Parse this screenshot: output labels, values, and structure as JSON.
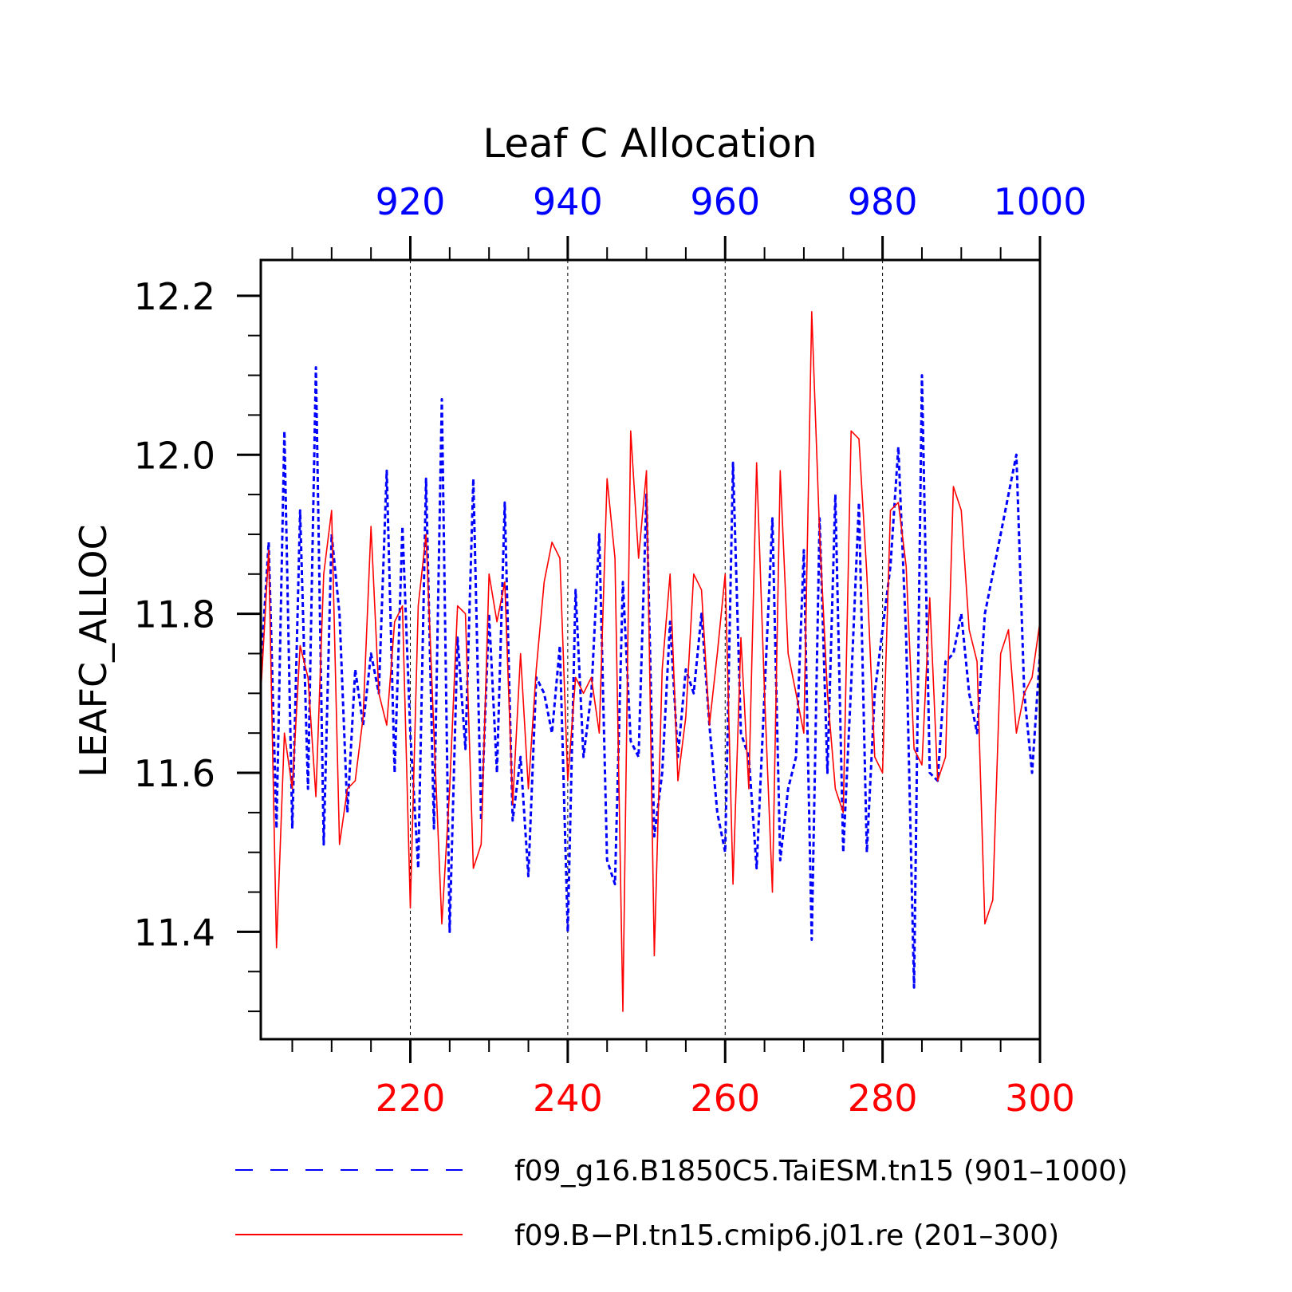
{
  "chart_data": {
    "type": "line",
    "title": "Leaf C Allocation",
    "ylabel": "LEAFC_ALLOC",
    "ylim": [
      11.265,
      12.245
    ],
    "y_ticks": [
      11.4,
      11.6,
      11.8,
      12.0,
      12.2
    ],
    "y_tick_labels": [
      "11.4",
      "11.6",
      "11.8",
      "12.0",
      "12.2"
    ],
    "x_bottom": {
      "range": [
        201,
        300
      ],
      "ticks": [
        220,
        240,
        260,
        280,
        300
      ],
      "tick_labels": [
        "220",
        "240",
        "260",
        "280",
        "300"
      ],
      "color": "#ff0000"
    },
    "x_top": {
      "range": [
        901,
        1000
      ],
      "ticks": [
        920,
        940,
        960,
        980,
        1000
      ],
      "tick_labels": [
        "920",
        "940",
        "960",
        "980",
        "1000"
      ],
      "color": "#0000ff"
    },
    "grid": "vertical dashed at major ticks",
    "legend_placement": "bottom",
    "series": [
      {
        "name": "f09_g16.B1850C5.TaiESM.tn15 (901–1000)",
        "axis": "top",
        "color": "#0000ff",
        "style": "dashed",
        "x_start": 901,
        "values": [
          11.73,
          11.89,
          11.53,
          12.03,
          11.53,
          11.93,
          11.58,
          12.11,
          11.51,
          11.9,
          11.8,
          11.55,
          11.73,
          11.66,
          11.75,
          11.7,
          11.98,
          11.6,
          11.91,
          11.65,
          11.48,
          11.97,
          11.53,
          12.07,
          11.4,
          11.77,
          11.63,
          11.97,
          11.54,
          11.8,
          11.6,
          11.94,
          11.54,
          11.62,
          11.47,
          11.72,
          11.7,
          11.65,
          11.76,
          11.4,
          11.83,
          11.62,
          11.7,
          11.9,
          11.49,
          11.46,
          11.84,
          11.64,
          11.62,
          11.95,
          11.52,
          11.6,
          11.79,
          11.62,
          11.73,
          11.7,
          11.8,
          11.66,
          11.55,
          11.5,
          11.99,
          11.65,
          11.62,
          11.48,
          11.7,
          11.92,
          11.49,
          11.58,
          11.62,
          11.88,
          11.39,
          11.92,
          11.6,
          11.95,
          11.5,
          11.71,
          11.94,
          11.5,
          11.7,
          11.78,
          11.86,
          12.01,
          11.77,
          11.33,
          12.1,
          11.6,
          11.59,
          11.74,
          11.75,
          11.8,
          11.7,
          11.65,
          11.8,
          11.85,
          11.9,
          11.95,
          12.0,
          11.7,
          11.6,
          11.75
        ]
      },
      {
        "name": "f09.B−PI.tn15.cmip6.j01.re (201–300)",
        "axis": "bottom",
        "color": "#ff0000",
        "style": "solid",
        "x_start": 201,
        "values": [
          11.7,
          11.88,
          11.38,
          11.65,
          11.58,
          11.76,
          11.72,
          11.57,
          11.85,
          11.93,
          11.51,
          11.58,
          11.59,
          11.67,
          11.91,
          11.7,
          11.66,
          11.79,
          11.81,
          11.43,
          11.81,
          11.9,
          11.65,
          11.41,
          11.58,
          11.81,
          11.8,
          11.48,
          11.51,
          11.85,
          11.79,
          11.84,
          11.56,
          11.75,
          11.58,
          11.73,
          11.84,
          11.89,
          11.87,
          11.59,
          11.72,
          11.7,
          11.72,
          11.65,
          11.97,
          11.87,
          11.3,
          12.03,
          11.87,
          11.98,
          11.37,
          11.73,
          11.85,
          11.59,
          11.67,
          11.85,
          11.83,
          11.66,
          11.75,
          11.85,
          11.46,
          11.77,
          11.58,
          11.99,
          11.7,
          11.45,
          11.98,
          11.75,
          11.7,
          11.65,
          12.18,
          11.9,
          11.7,
          11.58,
          11.55,
          12.03,
          12.02,
          11.85,
          11.62,
          11.6,
          11.93,
          11.94,
          11.86,
          11.63,
          11.61,
          11.82,
          11.59,
          11.62,
          11.96,
          11.93,
          11.78,
          11.74,
          11.41,
          11.44,
          11.75,
          11.78,
          11.65,
          11.7,
          11.72,
          11.79
        ]
      }
    ]
  }
}
